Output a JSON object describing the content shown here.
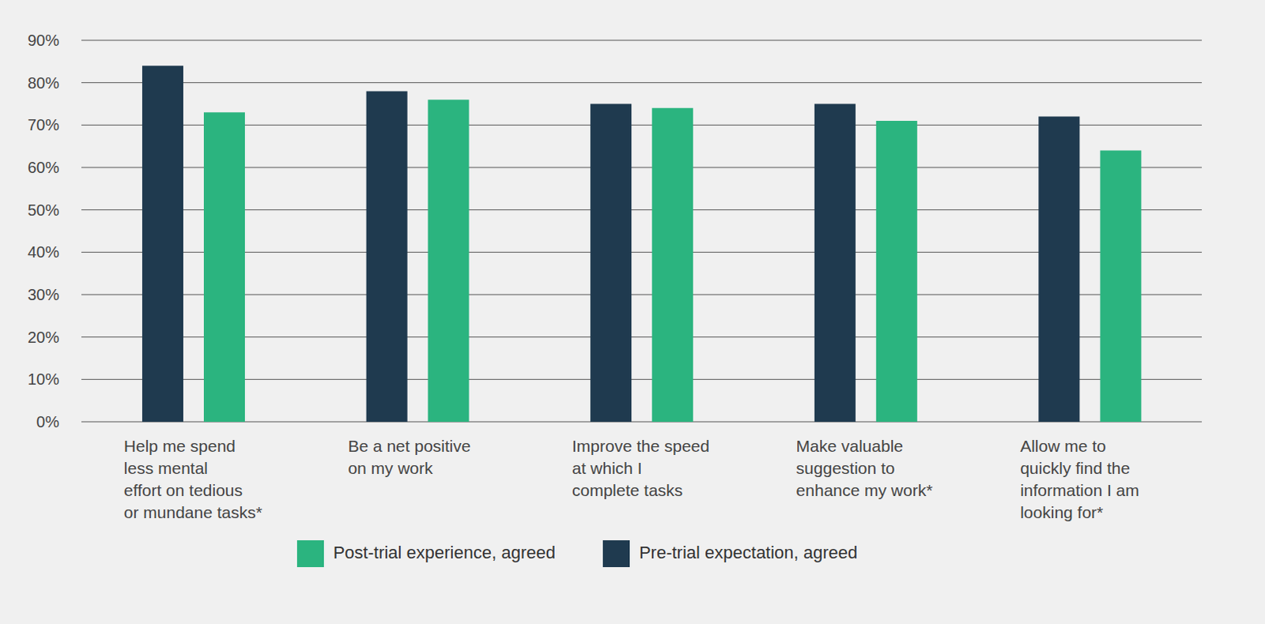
{
  "chart_data": {
    "type": "bar",
    "categories": [
      "Help me spend less mental effort on tedious or mundane tasks*",
      "Be a net positive on my work",
      "Improve the speed at which I complete tasks",
      "Make valuable suggestion to enhance my work*",
      "Allow me to quickly find the information I am looking for*"
    ],
    "series": [
      {
        "name": "Pre-trial expectation, agreed",
        "color": "#1f3a4f",
        "values": [
          84,
          78,
          75,
          75,
          72
        ]
      },
      {
        "name": "Post-trial experience, agreed",
        "color": "#2bb47f",
        "values": [
          73,
          76,
          74,
          71,
          64
        ]
      }
    ],
    "ylim": [
      0,
      90
    ],
    "yticks": [
      {
        "value": 0,
        "label": "0%"
      },
      {
        "value": 10,
        "label": "10%"
      },
      {
        "value": 20,
        "label": "20%"
      },
      {
        "value": 30,
        "label": "30%"
      },
      {
        "value": 40,
        "label": "40%"
      },
      {
        "value": 50,
        "label": "50%"
      },
      {
        "value": 60,
        "label": "60%"
      },
      {
        "value": 70,
        "label": "70%"
      },
      {
        "value": 80,
        "label": "80%"
      },
      {
        "value": 90,
        "label": "90%"
      }
    ],
    "grid": true,
    "legend": "bottom"
  }
}
